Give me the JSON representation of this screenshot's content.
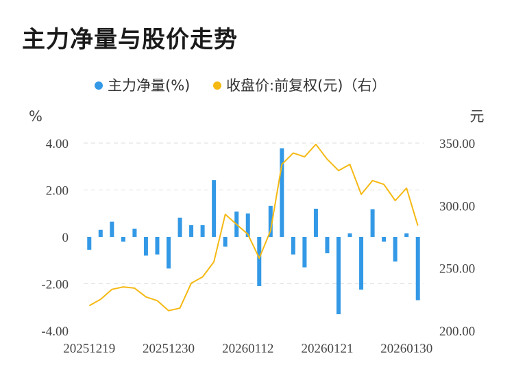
{
  "title": "主力净量与股价走势",
  "colors": {
    "bar": "#3399e6",
    "line": "#f5b914",
    "grid": "#dddddd"
  },
  "chart_data": {
    "type": "bar+line",
    "legend": [
      {
        "name": "主力净量(%)",
        "color": "#3399e6"
      },
      {
        "name": "收盘价:前复权(元)（右）",
        "color": "#f5b914"
      }
    ],
    "legend_position": "top",
    "left_unit": "%",
    "right_unit": "元",
    "ylim_left": [
      -4,
      4
    ],
    "ylim_right": [
      200,
      350
    ],
    "left_ticks": [
      "4.00",
      "2.00",
      "0",
      "-2.00",
      "-4.00"
    ],
    "right_ticks": [
      "350.00",
      "300.00",
      "250.00",
      "200.00"
    ],
    "x_tick_labels": [
      "20251219",
      "20251230",
      "20260112",
      "20260121",
      "20260130"
    ],
    "grid": true,
    "net_volume": [
      -0.55,
      0.3,
      0.65,
      -0.2,
      0.35,
      -0.8,
      -0.75,
      -1.35,
      0.82,
      0.5,
      0.5,
      2.42,
      -0.42,
      1.08,
      1.0,
      -2.1,
      1.32,
      3.78,
      -0.75,
      -1.3,
      1.2,
      -0.7,
      -3.3,
      0.15,
      -2.25,
      1.18,
      -0.2,
      -1.05,
      0.15,
      -2.7
    ],
    "close_price": [
      220,
      225,
      233,
      235,
      234,
      227,
      224,
      216,
      218,
      238,
      243,
      255,
      293,
      285,
      277,
      258,
      280,
      333,
      342,
      339,
      349,
      337,
      328,
      333,
      309,
      320,
      317,
      304,
      314,
      284
    ]
  }
}
